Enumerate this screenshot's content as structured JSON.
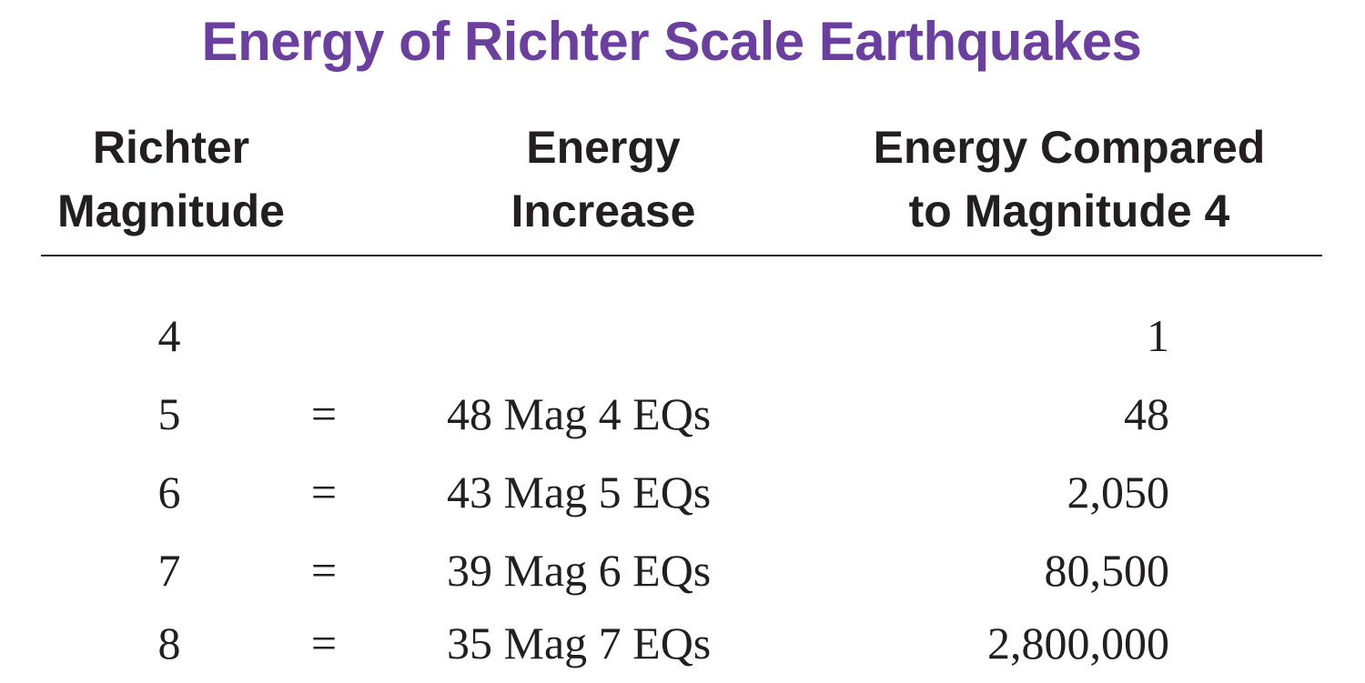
{
  "title": "Energy of Richter Scale Earthquakes",
  "headers": {
    "magnitude": [
      "Richter",
      "Magnitude"
    ],
    "increase": [
      "Energy",
      "Increase"
    ],
    "compared": [
      "Energy Compared",
      "to Magnitude 4"
    ]
  },
  "rows": [
    {
      "magnitude": "4",
      "sign": "",
      "increase": "",
      "compared": "1"
    },
    {
      "magnitude": "5",
      "sign": "=",
      "increase": "48 Mag 4 EQs",
      "compared": "48"
    },
    {
      "magnitude": "6",
      "sign": "=",
      "increase": "43 Mag 5 EQs",
      "compared": "2,050"
    },
    {
      "magnitude": "7",
      "sign": "=",
      "increase": "39 Mag 6 EQs",
      "compared": "80,500"
    },
    {
      "magnitude": "8",
      "sign": "=",
      "increase": "35 Mag 7 EQs",
      "compared": "2,800,000"
    }
  ],
  "colors": {
    "title": "#6a3fa0",
    "text": "#231f20"
  }
}
